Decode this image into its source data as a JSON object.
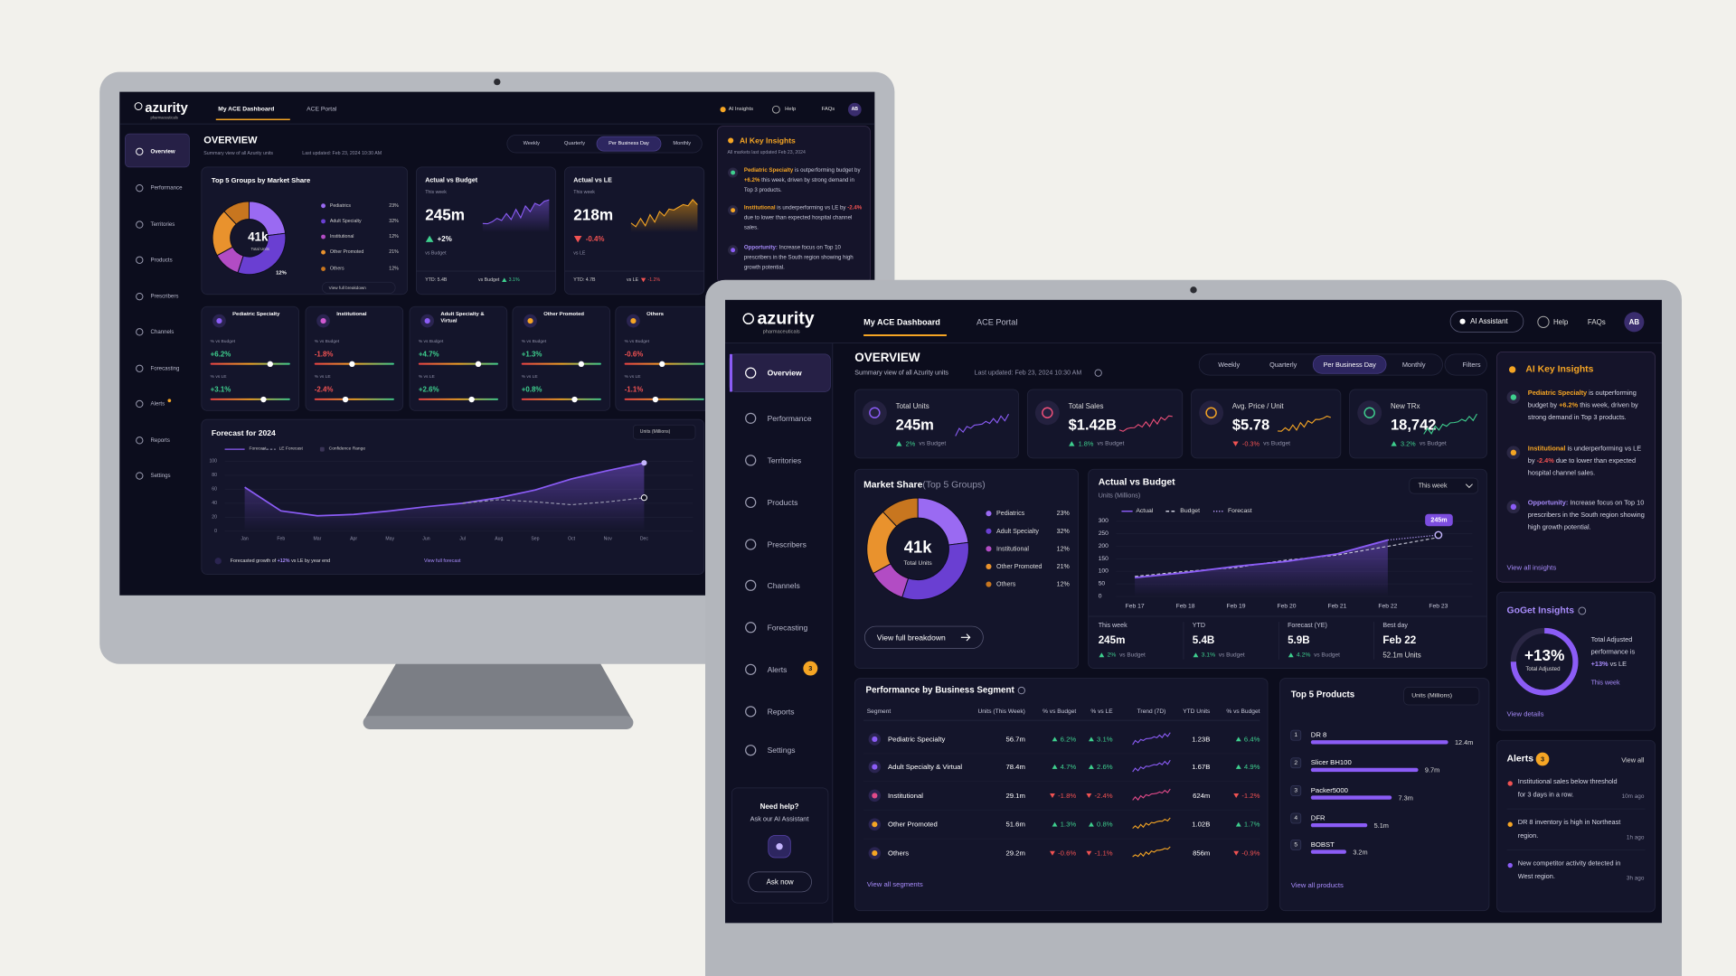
{
  "brand": {
    "name": "azurity",
    "tagline": "pharmaceuticals"
  },
  "tabs": [
    "My ACE Dashboard",
    "ACE Portal"
  ],
  "back_header": {
    "ai": "AI Insights",
    "help": "Help",
    "faqs": "FAQs",
    "avatar": "AB"
  },
  "front_header": {
    "ai": "AI Assistant",
    "help": "Help",
    "faqs": "FAQs",
    "avatar": "AB"
  },
  "nav": [
    "Overview",
    "Performance",
    "Territories",
    "Products",
    "Prescribers",
    "Channels",
    "Forecasting",
    "Alerts",
    "Reports",
    "Settings"
  ],
  "nav_badge": "3",
  "help_box": {
    "title": "Need help?",
    "text": "Ask our AI Assistant",
    "button": "Ask now"
  },
  "overview": {
    "title": "OVERVIEW",
    "subtitle": "Summary view of all Azurity units",
    "updated": "Last updated: Feb 23, 2024 10:30 AM"
  },
  "periods": [
    "Weekly",
    "Quarterly",
    "Per Business Day",
    "Monthly"
  ],
  "filters": "Filters",
  "kpis": [
    {
      "label": "Total Units",
      "value": "245m",
      "change": "2%",
      "note": "vs Budget"
    },
    {
      "label": "Total Sales",
      "value": "$1.42B",
      "change": "1.8%",
      "note": "vs Budget"
    },
    {
      "label": "Avg. Price / Unit",
      "value": "$5.78",
      "change": "-0.3%",
      "note": "vs Budget"
    },
    {
      "label": "New TRx",
      "value": "18,742",
      "change": "3.2%",
      "note": "vs Budget"
    }
  ],
  "market_share": {
    "title": "Market Share",
    "qualifier": "(Top 5 Groups)",
    "back_title": "Top 5 Groups by Market Share",
    "center": "41k",
    "center_label": "Total Units",
    "groups": [
      "Pediatrics",
      "Adult Specialty",
      "Institutional",
      "Other Promoted",
      "Others"
    ],
    "values": [
      23,
      32,
      12,
      21,
      12
    ],
    "value_labels": [
      "23%",
      "32%",
      "12%",
      "21%",
      "12%"
    ],
    "colors": [
      "#9a6af2",
      "#6a3fd2",
      "#b24cc4",
      "#e9922d",
      "#c8761f"
    ],
    "link": "View full breakdown"
  },
  "actual_vs_budget": {
    "title": "Actual vs Budget",
    "unit": "Units (Millions)",
    "range": "This week",
    "callout": "245m",
    "categories": [
      "Feb 17",
      "Feb 18",
      "Feb 19",
      "Feb 20",
      "Feb 21",
      "Feb 22",
      "Feb 23"
    ],
    "series": [
      {
        "name": "Actual",
        "color": "#8b5cf6",
        "values": [
          75,
          95,
          120,
          140,
          170,
          225,
          null
        ]
      },
      {
        "name": "Budget",
        "color": "#c9cad8",
        "values": [
          80,
          100,
          115,
          145,
          165,
          200,
          235
        ]
      },
      {
        "name": "Forecast",
        "color": "#b69cf8",
        "values": [
          null,
          null,
          null,
          null,
          null,
          225,
          245
        ]
      }
    ],
    "ylim": [
      0,
      300
    ],
    "yticks": [
      0,
      50,
      100,
      150,
      200,
      250,
      300
    ],
    "stats": [
      {
        "label": "This week",
        "value": "245m",
        "change": "2%",
        "note": "vs Budget"
      },
      {
        "label": "YTD",
        "value": "5.4B",
        "change": "3.1%",
        "note": "vs Budget"
      },
      {
        "label": "Forecast (YE)",
        "value": "5.9B",
        "change": "4.2%",
        "note": "vs Budget"
      },
      {
        "label": "Best day",
        "value": "Feb 22",
        "note": "52.1m Units"
      }
    ]
  },
  "back_actual_vs_budget": {
    "title": "Actual vs Budget",
    "period": "This week",
    "value": "245m",
    "change": "+2%",
    "note": "vs Budget",
    "ytd": "YTD: 5.4B",
    "compare": "vs Budget",
    "compare_change": "3.1%"
  },
  "back_actual_vs_le": {
    "title": "Actual vs LE",
    "period": "This week",
    "value": "218m",
    "change": "-0.4%",
    "note": "vs LE",
    "ytd": "YTD: 4.7B",
    "compare": "vs LE",
    "compare_change": "-1.2%"
  },
  "segments": {
    "title": "Performance by Business Segment",
    "columns": [
      "Segment",
      "Units (This Week)",
      "% vs Budget",
      "% vs LE",
      "Trend (7D)",
      "YTD Units",
      "% vs Budget"
    ],
    "rows": [
      [
        "Pediatric Specialty",
        "56.7m",
        "6.2%",
        "3.1%",
        "1.23B",
        "6.4%"
      ],
      [
        "Adult Specialty & Virtual",
        "78.4m",
        "4.7%",
        "2.6%",
        "1.67B",
        "4.9%"
      ],
      [
        "Institutional",
        "29.1m",
        "-1.8%",
        "-2.4%",
        "624m",
        "-1.2%"
      ],
      [
        "Other Promoted",
        "51.6m",
        "1.3%",
        "0.8%",
        "1.02B",
        "1.7%"
      ],
      [
        "Others",
        "29.2m",
        "-0.6%",
        "-1.1%",
        "856m",
        "-0.9%"
      ]
    ],
    "link": "View all segments"
  },
  "back_segments": {
    "budget_label": "% vs Budget",
    "le_label": "% vs LE",
    "cards": [
      {
        "name": "Pediatric Specialty",
        "budget": "+6.2%",
        "le": "+3.1%"
      },
      {
        "name": "Institutional",
        "budget": "-1.8%",
        "le": "-2.4%"
      },
      {
        "name": "Adult Specialty & Virtual",
        "budget": "+4.7%",
        "le": "+2.6%"
      },
      {
        "name": "Other Promoted",
        "budget": "+1.3%",
        "le": "+0.8%"
      },
      {
        "name": "Others",
        "budget": "-0.6%",
        "le": "-1.1%"
      }
    ]
  },
  "top_products": {
    "title": "Top 5 Products",
    "unit": "Units (Millions)",
    "ranks": [
      "1",
      "2",
      "3",
      "4",
      "5"
    ],
    "names": [
      "DR 8",
      "Slicer BH100",
      "Packer5000",
      "DFR",
      "BOBST"
    ],
    "values": [
      12.4,
      9.7,
      7.3,
      5.1,
      3.2
    ],
    "value_labels": [
      "12.4m",
      "9.7m",
      "7.3m",
      "5.1m",
      "3.2m"
    ],
    "link": "View all products"
  },
  "insights": {
    "title": "AI Key Insights",
    "back_subtitle": "All markets last updated Feb 23, 2024",
    "items": [
      {
        "lead": "Pediatric Specialty",
        "text": " is outperforming budget by ",
        "num": "+6.2%",
        "rest": " this week, driven by strong demand in Top 3 products."
      },
      {
        "lead": "Institutional",
        "text": " is underperforming vs LE by ",
        "num": "-2.4%",
        "rest": " due to lower than expected hospital channel sales."
      },
      {
        "lead": "Opportunity:",
        "text": " Increase focus on Top 10 prescribers in the South region showing high growth potential."
      }
    ],
    "link": "View all insights"
  },
  "goget": {
    "title": "GoGet Insights",
    "value": "+13%",
    "value_label": "Total Adjusted",
    "text": "Total Adjusted performance is ",
    "num": "+13%",
    "rest": " vs LE",
    "period": "This week",
    "link": "View details"
  },
  "alerts": {
    "title": "Alerts",
    "badge": "3",
    "link": "View all",
    "items": [
      {
        "text": "Institutional sales below threshold for 3 days in a row.",
        "time": "10m ago"
      },
      {
        "text": "DR 8 inventory is high in Northeast region.",
        "time": "1h ago"
      },
      {
        "text": "New competitor activity detected in West region.",
        "time": "3h ago"
      }
    ]
  },
  "forecast": {
    "title": "Forecast for 2024",
    "unit": "Units (Millions)",
    "band": "Confidence Range",
    "categories": [
      "Jan",
      "Feb",
      "Mar",
      "Apr",
      "May",
      "Jun",
      "Jul",
      "Aug",
      "Sep",
      "Oct",
      "Nov",
      "Dec"
    ],
    "series": [
      {
        "name": "Forecast",
        "color": "#8b5cf6",
        "values": [
          63,
          29,
          22,
          24,
          29,
          35,
          40,
          48,
          59,
          75,
          87,
          98
        ]
      },
      {
        "name": "LE Forecast",
        "color": "#9c9db2",
        "values": [
          null,
          null,
          null,
          null,
          null,
          null,
          40,
          45,
          42,
          38,
          42,
          48
        ]
      }
    ],
    "ylim": [
      0,
      100
    ],
    "yticks": [
      0,
      20,
      40,
      60,
      80,
      100
    ],
    "note_before": "Forecasted growth of ",
    "note_num": "+12%",
    "note_after": " vs LE by year end",
    "link": "View full forecast"
  }
}
